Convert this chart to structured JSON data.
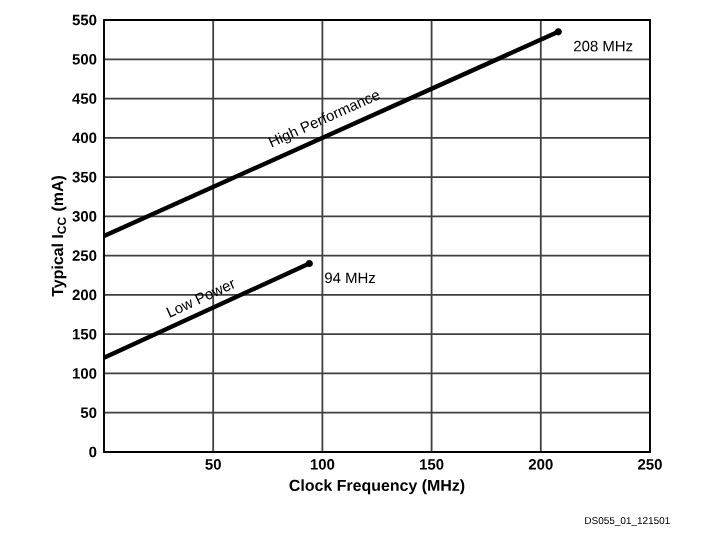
{
  "chart_data": {
    "type": "line",
    "xlabel": "Clock Frequency (MHz)",
    "ylabel": "Typical I$_{CC}$ (mA)",
    "series": [
      {
        "name": "High Performance",
        "color": "#000000",
        "x": [
          0,
          208
        ],
        "values": [
          275,
          535
        ]
      },
      {
        "name": "Low Power",
        "color": "#000000",
        "x": [
          0,
          94
        ],
        "values": [
          120,
          240
        ]
      }
    ],
    "xlim": [
      0,
      250
    ],
    "xticks": [
      {
        "value": 0,
        "label": null
      },
      50,
      100,
      150,
      200,
      250
    ],
    "ylim": [
      0,
      550
    ],
    "yticks": [
      0,
      50,
      100,
      150,
      200,
      250,
      300,
      350,
      400,
      450,
      500,
      550
    ],
    "grid": true,
    "marker": "none",
    "line_style": "solid",
    "annotations": [
      {
        "text": "208 MHz",
        "x": 208,
        "y": 535
      },
      {
        "text": "94 MHz",
        "x": 94,
        "y": 240
      },
      "DS055_01_121501"
    ]
  }
}
